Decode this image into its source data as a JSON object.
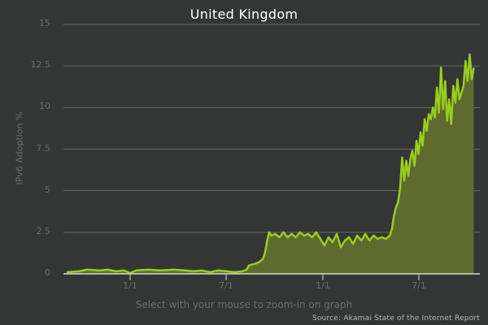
{
  "chart_data": {
    "type": "area",
    "title": "United Kingdom",
    "xlabel": "",
    "ylabel": "IPv6 Adoption %",
    "ylim": [
      0,
      15
    ],
    "yticks": [
      "0",
      "2.5",
      "5",
      "7.5",
      "10",
      "12.5",
      "15"
    ],
    "xticks": [
      "1/1",
      "7/1",
      "1/1",
      "7/1"
    ],
    "grid": true,
    "legend": null,
    "series": [
      {
        "name": "United Kingdom",
        "x_positions_note": "points given as [fraction of x-axis 0..1, value %]",
        "points": [
          [
            0.0,
            0.1
          ],
          [
            0.03,
            0.15
          ],
          [
            0.05,
            0.25
          ],
          [
            0.08,
            0.2
          ],
          [
            0.1,
            0.25
          ],
          [
            0.12,
            0.15
          ],
          [
            0.14,
            0.2
          ],
          [
            0.155,
            0.05
          ],
          [
            0.17,
            0.2
          ],
          [
            0.2,
            0.25
          ],
          [
            0.23,
            0.2
          ],
          [
            0.26,
            0.25
          ],
          [
            0.29,
            0.2
          ],
          [
            0.31,
            0.15
          ],
          [
            0.33,
            0.2
          ],
          [
            0.35,
            0.1
          ],
          [
            0.37,
            0.2
          ],
          [
            0.39,
            0.15
          ],
          [
            0.41,
            0.1
          ],
          [
            0.43,
            0.15
          ],
          [
            0.44,
            0.25
          ],
          [
            0.445,
            0.5
          ],
          [
            0.46,
            0.6
          ],
          [
            0.47,
            0.7
          ],
          [
            0.48,
            0.9
          ],
          [
            0.485,
            1.3
          ],
          [
            0.49,
            2.0
          ],
          [
            0.495,
            2.5
          ],
          [
            0.5,
            2.3
          ],
          [
            0.51,
            2.4
          ],
          [
            0.52,
            2.2
          ],
          [
            0.53,
            2.5
          ],
          [
            0.54,
            2.2
          ],
          [
            0.55,
            2.4
          ],
          [
            0.56,
            2.2
          ],
          [
            0.57,
            2.5
          ],
          [
            0.58,
            2.3
          ],
          [
            0.59,
            2.4
          ],
          [
            0.6,
            2.2
          ],
          [
            0.61,
            2.5
          ],
          [
            0.62,
            2.1
          ],
          [
            0.63,
            1.7
          ],
          [
            0.64,
            2.2
          ],
          [
            0.65,
            1.9
          ],
          [
            0.66,
            2.4
          ],
          [
            0.67,
            1.6
          ],
          [
            0.68,
            2.0
          ],
          [
            0.69,
            2.2
          ],
          [
            0.7,
            1.8
          ],
          [
            0.71,
            2.3
          ],
          [
            0.72,
            2.0
          ],
          [
            0.73,
            2.4
          ],
          [
            0.74,
            2.0
          ],
          [
            0.75,
            2.3
          ],
          [
            0.76,
            2.1
          ],
          [
            0.77,
            2.2
          ],
          [
            0.78,
            2.1
          ],
          [
            0.79,
            2.3
          ],
          [
            0.795,
            2.7
          ],
          [
            0.8,
            3.5
          ],
          [
            0.805,
            4.0
          ],
          [
            0.81,
            4.3
          ],
          [
            0.815,
            5.1
          ],
          [
            0.82,
            7.0
          ],
          [
            0.825,
            5.6
          ],
          [
            0.83,
            6.8
          ],
          [
            0.835,
            5.9
          ],
          [
            0.84,
            6.9
          ],
          [
            0.845,
            7.4
          ],
          [
            0.85,
            6.5
          ],
          [
            0.855,
            8.0
          ],
          [
            0.86,
            7.2
          ],
          [
            0.865,
            8.5
          ],
          [
            0.87,
            7.7
          ],
          [
            0.875,
            9.3
          ],
          [
            0.88,
            8.6
          ],
          [
            0.885,
            9.6
          ],
          [
            0.89,
            9.3
          ],
          [
            0.895,
            10.0
          ],
          [
            0.9,
            9.4
          ],
          [
            0.905,
            11.2
          ],
          [
            0.91,
            9.7
          ],
          [
            0.915,
            12.4
          ],
          [
            0.92,
            9.9
          ],
          [
            0.925,
            11.6
          ],
          [
            0.93,
            9.2
          ],
          [
            0.935,
            10.5
          ],
          [
            0.94,
            9.0
          ],
          [
            0.945,
            11.3
          ],
          [
            0.95,
            10.3
          ],
          [
            0.955,
            11.7
          ],
          [
            0.96,
            10.5
          ],
          [
            0.965,
            10.9
          ],
          [
            0.97,
            11.3
          ],
          [
            0.975,
            12.8
          ],
          [
            0.98,
            11.6
          ],
          [
            0.985,
            13.2
          ],
          [
            0.99,
            11.7
          ],
          [
            0.995,
            12.4
          ]
        ]
      }
    ]
  },
  "footer": {
    "hint": "Select with your mouse to zoom-in on graph",
    "source": "Source: Akamai State of the Internet Report"
  },
  "colors": {
    "background": "#333635",
    "line": "#9acd1c",
    "fill": "#5e6b2f",
    "grid": "#6a6d6b",
    "axis": "#d8d8d8"
  }
}
